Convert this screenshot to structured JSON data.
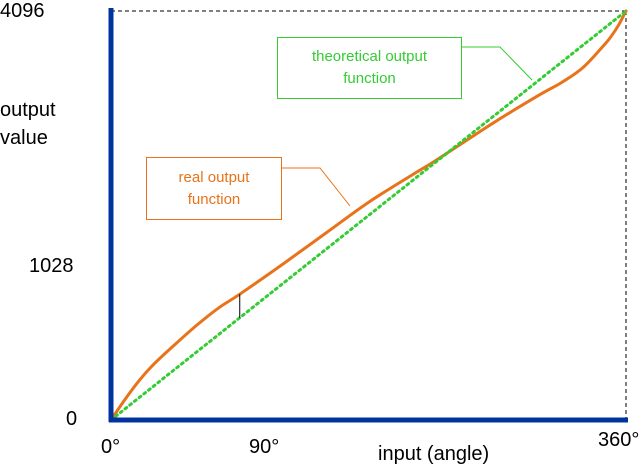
{
  "chart_data": {
    "type": "line",
    "title": "",
    "xlabel": "input (angle)",
    "ylabel": "output value",
    "xlim": [
      0,
      360
    ],
    "ylim": [
      0,
      4096
    ],
    "x_ticks": [
      "0°",
      "90°",
      "360°"
    ],
    "y_ticks": [
      "0",
      "1028",
      "4096"
    ],
    "grid": false,
    "series": [
      {
        "name": "real output function",
        "color": "#e8731a",
        "x": [
          0,
          10,
          20,
          30,
          45,
          60,
          75,
          90,
          120,
          150,
          180,
          210,
          225,
          240,
          270,
          300,
          315,
          330,
          345,
          350,
          355,
          360
        ],
        "y": [
          0,
          210,
          400,
          560,
          760,
          950,
          1120,
          1260,
          1560,
          1870,
          2180,
          2450,
          2580,
          2720,
          3000,
          3260,
          3380,
          3530,
          3760,
          3850,
          3960,
          4096
        ]
      },
      {
        "name": "theoretical output function",
        "color": "#33cc33",
        "x": [
          0,
          360
        ],
        "y": [
          0,
          4096
        ]
      }
    ],
    "annotations": {
      "real_label_line1": "real output",
      "real_label_line2": "function",
      "theoretical_label_line1": "theoretical output",
      "theoretical_label_line2": "function"
    }
  },
  "labels": {
    "y_top": "4096",
    "y_mid": "1028",
    "y_zero": "0",
    "x_zero": "0°",
    "x_mid": "90°",
    "x_end": "360°",
    "x_axis_title": "input (angle)",
    "y_axis_title_line1": "output",
    "y_axis_title_line2": "value"
  },
  "colors": {
    "axis": "#0033a0",
    "real": "#e8731a",
    "theoretical": "#33cc33",
    "guide": "#000000"
  }
}
